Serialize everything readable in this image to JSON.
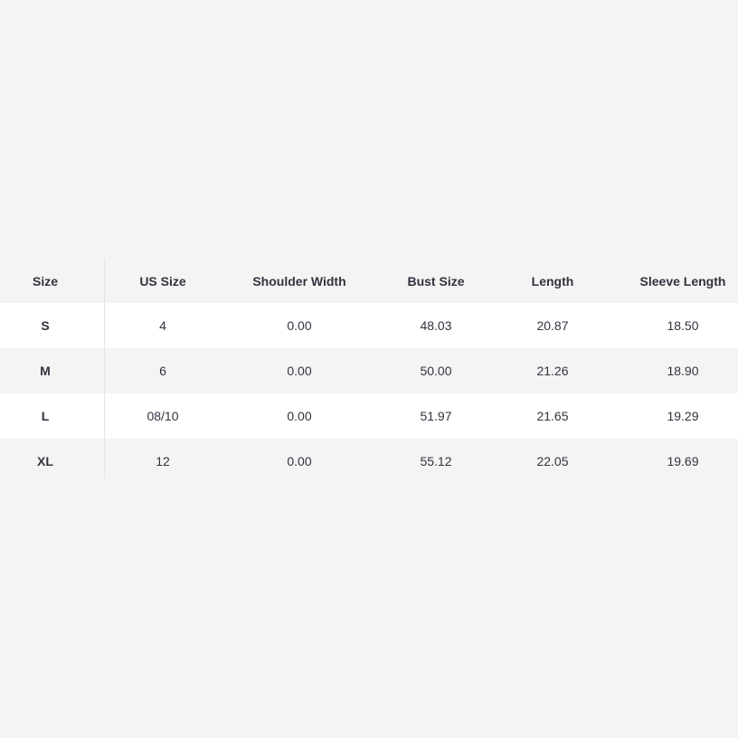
{
  "size_chart": {
    "headers": [
      "Size",
      "US Size",
      "Shoulder Width",
      "Bust Size",
      "Length",
      "Sleeve Length"
    ],
    "rows": [
      [
        "S",
        "4",
        "0.00",
        "48.03",
        "20.87",
        "18.50"
      ],
      [
        "M",
        "6",
        "0.00",
        "50.00",
        "21.26",
        "18.90"
      ],
      [
        "L",
        "08/10",
        "0.00",
        "51.97",
        "21.65",
        "19.29"
      ],
      [
        "XL",
        "12",
        "0.00",
        "55.12",
        "22.05",
        "19.69"
      ]
    ]
  }
}
